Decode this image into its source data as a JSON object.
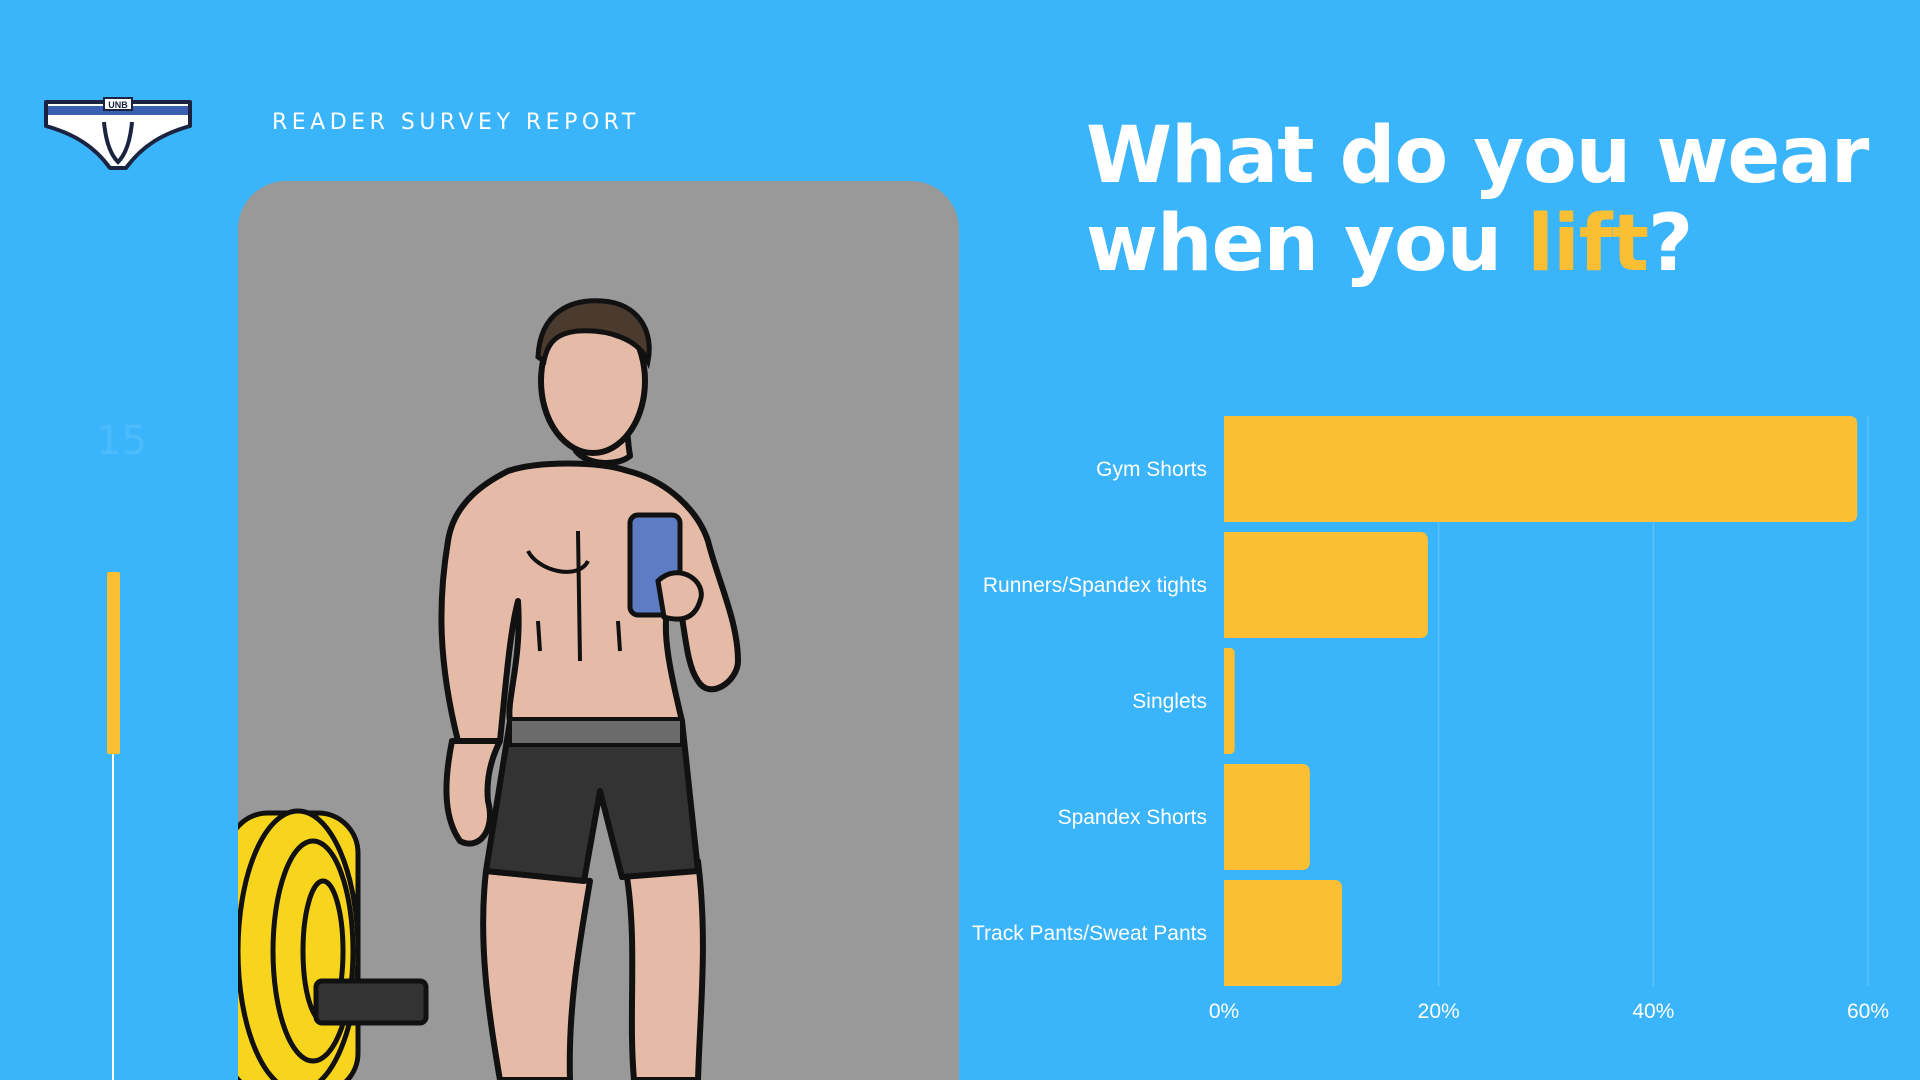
{
  "header": {
    "label": "READER SURVEY REPORT"
  },
  "logo": {
    "text": "UNB"
  },
  "page_number": "15",
  "title": {
    "line1": "What do you wear",
    "line2_prefix": "when you ",
    "line2_highlight": "lift",
    "line2_suffix": "?"
  },
  "colors": {
    "background": "#3ab4fb",
    "accent": "#fbbf34",
    "text": "#ffffff",
    "card": "#999999"
  },
  "illustration": {
    "subject": "man-taking-mirror-selfie-with-barbell"
  },
  "chart_data": {
    "type": "bar",
    "orientation": "horizontal",
    "categories": [
      "Gym Shorts",
      "Runners/Spandex tights",
      "Singlets",
      "Spandex Shorts",
      "Track Pants/Sweat Pants"
    ],
    "values": [
      59,
      19,
      1,
      8,
      11
    ],
    "xlim": [
      0,
      60
    ],
    "xticks": [
      "0%",
      "20%",
      "40%",
      "60%"
    ],
    "xtick_values": [
      0,
      20,
      40,
      60
    ],
    "grid": "vertical",
    "title": "",
    "xlabel": "",
    "ylabel": ""
  }
}
